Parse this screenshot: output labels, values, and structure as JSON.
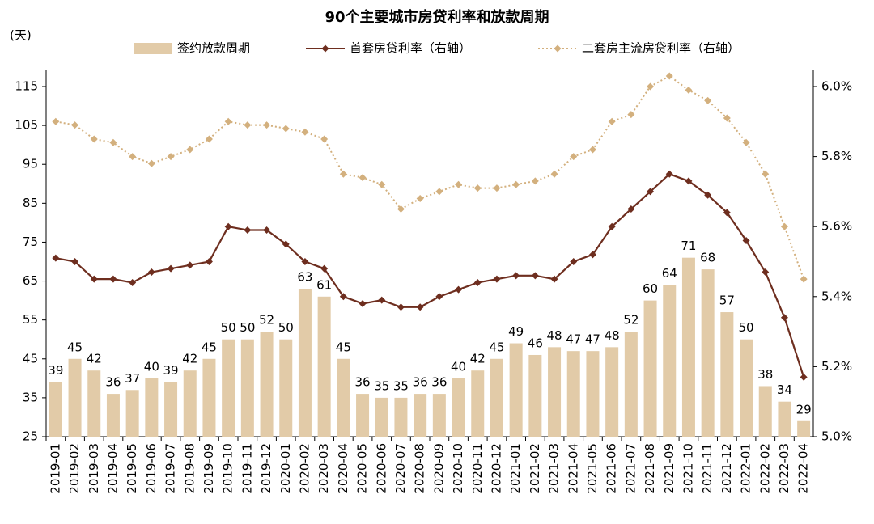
{
  "chart_data": {
    "type": "bar-line",
    "title": "90个主要城市房贷利率和放款周期",
    "y_label": "(天)",
    "categories": [
      "2019-01",
      "2019-02",
      "2019-03",
      "2019-04",
      "2019-05",
      "2019-06",
      "2019-07",
      "2019-08",
      "2019-09",
      "2019-10",
      "2019-11",
      "2019-12",
      "2020-01",
      "2020-02",
      "2020-03",
      "2020-04",
      "2020-05",
      "2020-06",
      "2020-07",
      "2020-08",
      "2020-09",
      "2020-10",
      "2020-11",
      "2020-12",
      "2021-01",
      "2021-02",
      "2021-03",
      "2021-04",
      "2021-05",
      "2021-06",
      "2021-07",
      "2021-08",
      "2021-09",
      "2021-10",
      "2021-11",
      "2021-12",
      "2022-01",
      "2022-02",
      "2022-03",
      "2022-04"
    ],
    "series": [
      {
        "name": "签约放款周期",
        "type": "bar",
        "color": "#e2cba8",
        "axis": "y",
        "values": [
          39,
          45,
          42,
          36,
          37,
          40,
          39,
          42,
          45,
          50,
          50,
          52,
          50,
          63,
          61,
          45,
          36,
          35,
          35,
          36,
          36,
          40,
          42,
          45,
          49,
          46,
          48,
          47,
          47,
          48,
          52,
          60,
          64,
          71,
          68,
          57,
          50,
          38,
          34,
          29
        ]
      },
      {
        "name": "首套房贷利率（右轴）",
        "type": "line",
        "color": "#6e2e1f",
        "axis": "y2",
        "values": [
          5.51,
          5.5,
          5.45,
          5.45,
          5.44,
          5.47,
          5.48,
          5.49,
          5.5,
          5.6,
          5.59,
          5.59,
          5.55,
          5.5,
          5.48,
          5.4,
          5.38,
          5.39,
          5.37,
          5.37,
          5.4,
          5.42,
          5.44,
          5.45,
          5.46,
          5.46,
          5.45,
          5.5,
          5.52,
          5.6,
          5.65,
          5.7,
          5.75,
          5.73,
          5.69,
          5.64,
          5.56,
          5.47,
          5.34,
          5.17
        ]
      },
      {
        "name": "二套房主流房贷利率（右轴）",
        "type": "dotted-line",
        "color": "#d3b07e",
        "axis": "y2",
        "values": [
          5.9,
          5.89,
          5.85,
          5.84,
          5.8,
          5.78,
          5.8,
          5.82,
          5.85,
          5.9,
          5.89,
          5.89,
          5.88,
          5.87,
          5.85,
          5.75,
          5.74,
          5.72,
          5.65,
          5.68,
          5.7,
          5.72,
          5.71,
          5.71,
          5.72,
          5.73,
          5.75,
          5.8,
          5.82,
          5.9,
          5.92,
          6.0,
          6.03,
          5.99,
          5.96,
          5.91,
          5.84,
          5.75,
          5.6,
          5.45
        ]
      }
    ],
    "ylim": [
      25,
      115
    ],
    "yticks": [
      25,
      35,
      45,
      55,
      65,
      75,
      85,
      95,
      105,
      115
    ],
    "y2lim": [
      5.0,
      6.0
    ],
    "y2ticks": [
      {
        "value": 5.0,
        "label": "5.0%"
      },
      {
        "value": 5.2,
        "label": "5.2%"
      },
      {
        "value": 5.4,
        "label": "5.4%"
      },
      {
        "value": 5.6,
        "label": "5.6%"
      },
      {
        "value": 5.8,
        "label": "5.8%"
      },
      {
        "value": 6.0,
        "label": "6.0%"
      }
    ],
    "grid": false,
    "legend": "top",
    "data_labels": true
  }
}
